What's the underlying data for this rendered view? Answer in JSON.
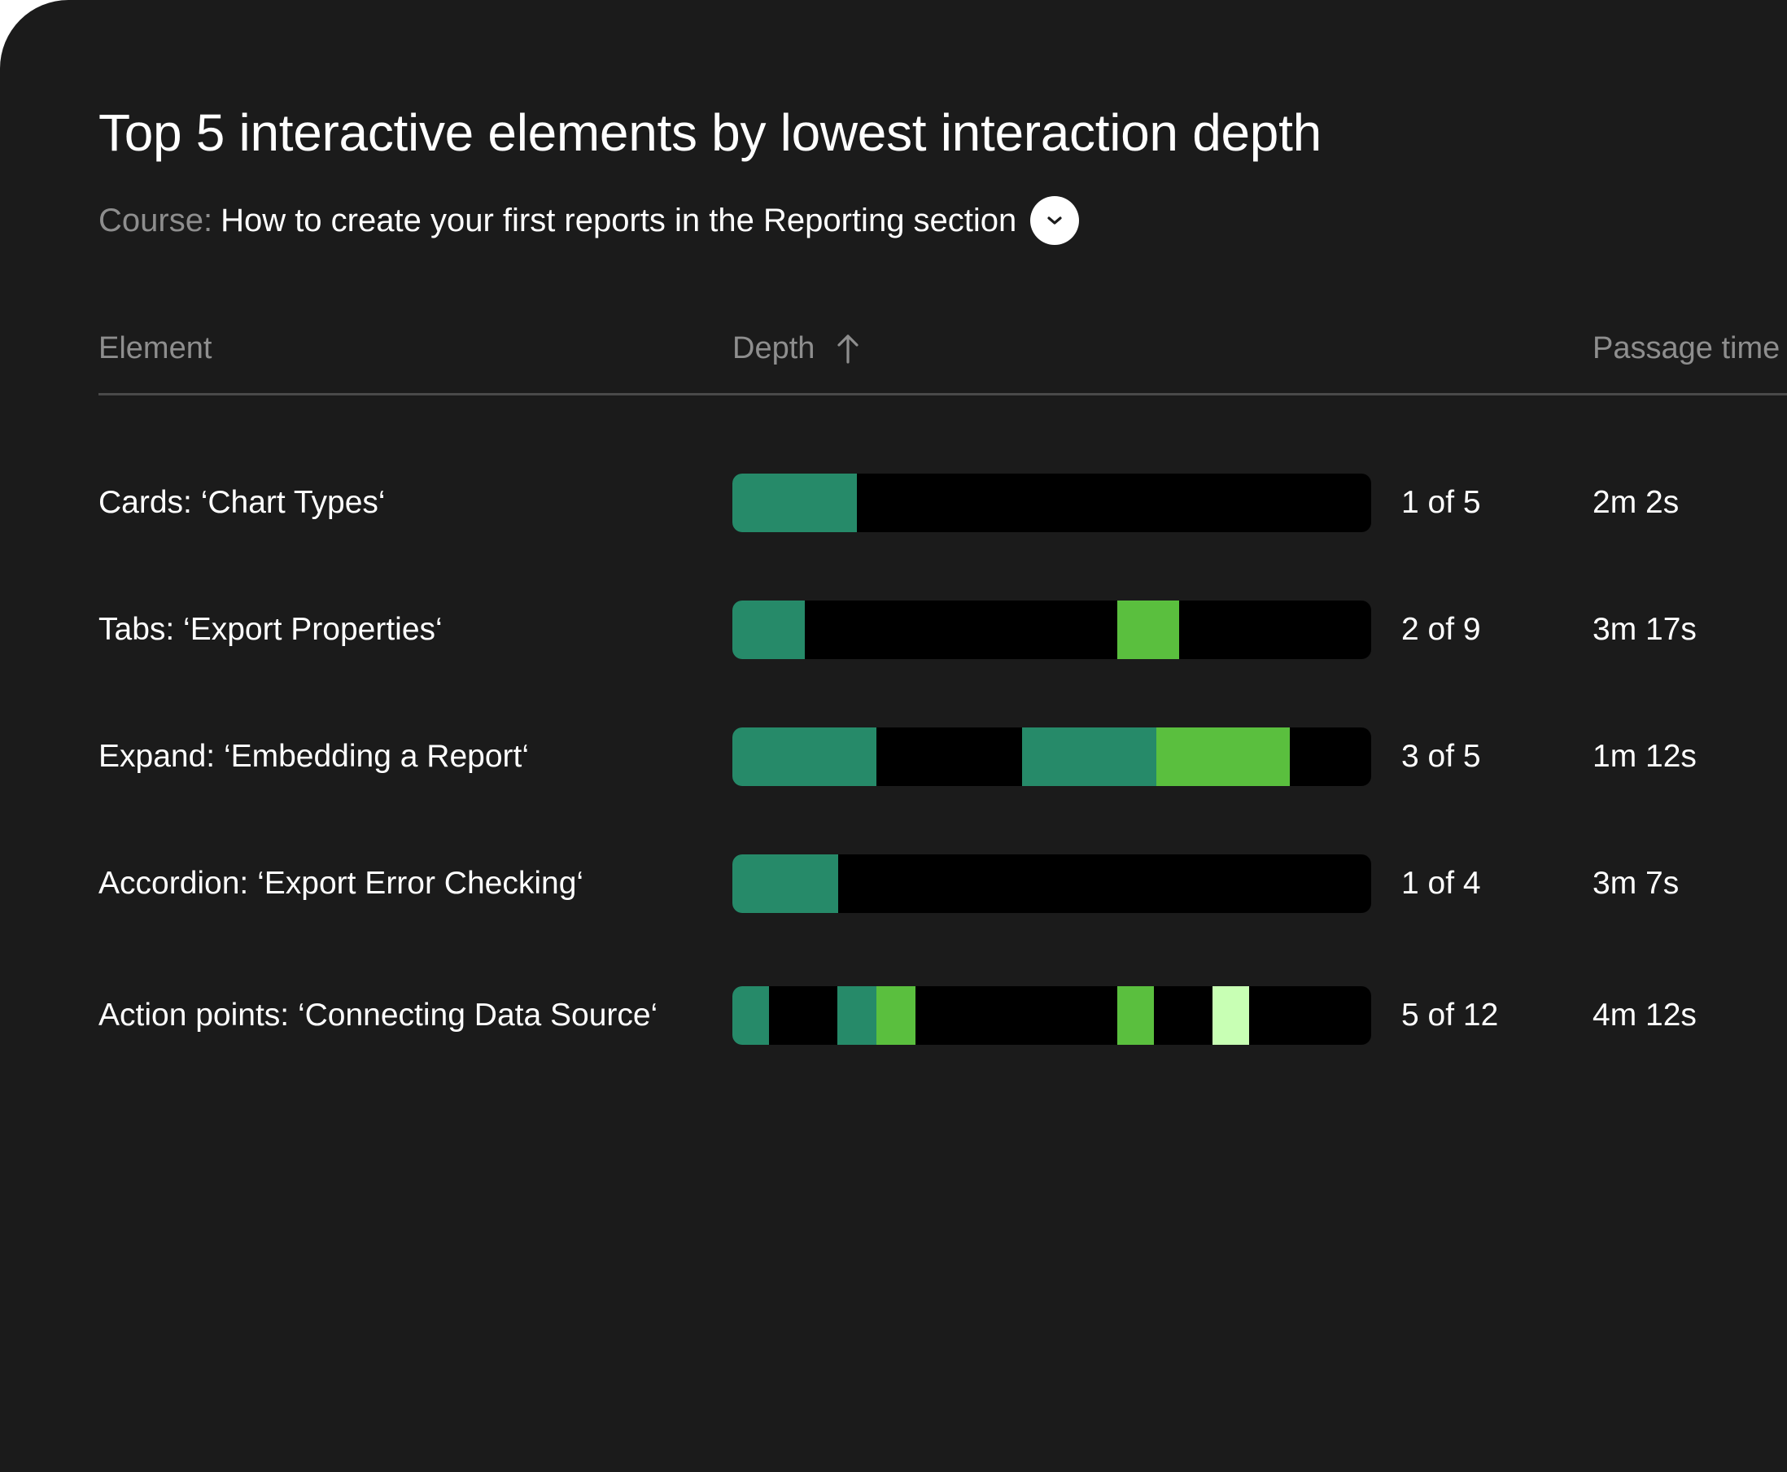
{
  "title": "Top 5 interactive elements by lowest interaction depth",
  "course": {
    "label": "Course:",
    "value": "How to create your first reports in the Reporting section",
    "dropdown_icon": "chevron-down-icon"
  },
  "table": {
    "headers": {
      "element": "Element",
      "depth": "Depth",
      "depth_sort_icon": "arrow-up-icon",
      "passage_time": "Passage time"
    },
    "colors": {
      "track": "#000000",
      "teal": "#268a69",
      "green": "#5abf3e",
      "pale": "#c8ffb4"
    },
    "rows": [
      {
        "element": "Cards: ‘Chart Types‘",
        "depth_label": "1 of 5",
        "passage_time": "2m 2s",
        "segments": [
          {
            "start": 0,
            "end": 0.195,
            "color": "teal"
          }
        ]
      },
      {
        "element": "Tabs: ‘Export Properties‘",
        "depth_label": "2 of 9",
        "passage_time": "3m 17s",
        "segments": [
          {
            "start": 0,
            "end": 0.114,
            "color": "teal"
          },
          {
            "start": 0.603,
            "end": 0.699,
            "color": "green"
          }
        ]
      },
      {
        "element": "Expand: ‘Embedding a Report‘",
        "depth_label": "3 of 5",
        "passage_time": "1m 12s",
        "segments": [
          {
            "start": 0,
            "end": 0.225,
            "color": "teal"
          },
          {
            "start": 0.454,
            "end": 0.664,
            "color": "teal"
          },
          {
            "start": 0.664,
            "end": 0.873,
            "color": "green"
          }
        ]
      },
      {
        "element": "Accordion: ‘Export Error Checking‘",
        "depth_label": "1 of 4",
        "passage_time": "3m 7s",
        "segments": [
          {
            "start": 0,
            "end": 0.165,
            "color": "teal"
          }
        ]
      },
      {
        "element": "Action points: ‘Connecting Data Source‘",
        "depth_label": "5 of 12",
        "passage_time": "4m 12s",
        "segments": [
          {
            "start": 0,
            "end": 0.057,
            "color": "teal"
          },
          {
            "start": 0.164,
            "end": 0.225,
            "color": "teal"
          },
          {
            "start": 0.225,
            "end": 0.286,
            "color": "green"
          },
          {
            "start": 0.603,
            "end": 0.66,
            "color": "green"
          },
          {
            "start": 0.752,
            "end": 0.809,
            "color": "pale"
          }
        ]
      }
    ]
  }
}
